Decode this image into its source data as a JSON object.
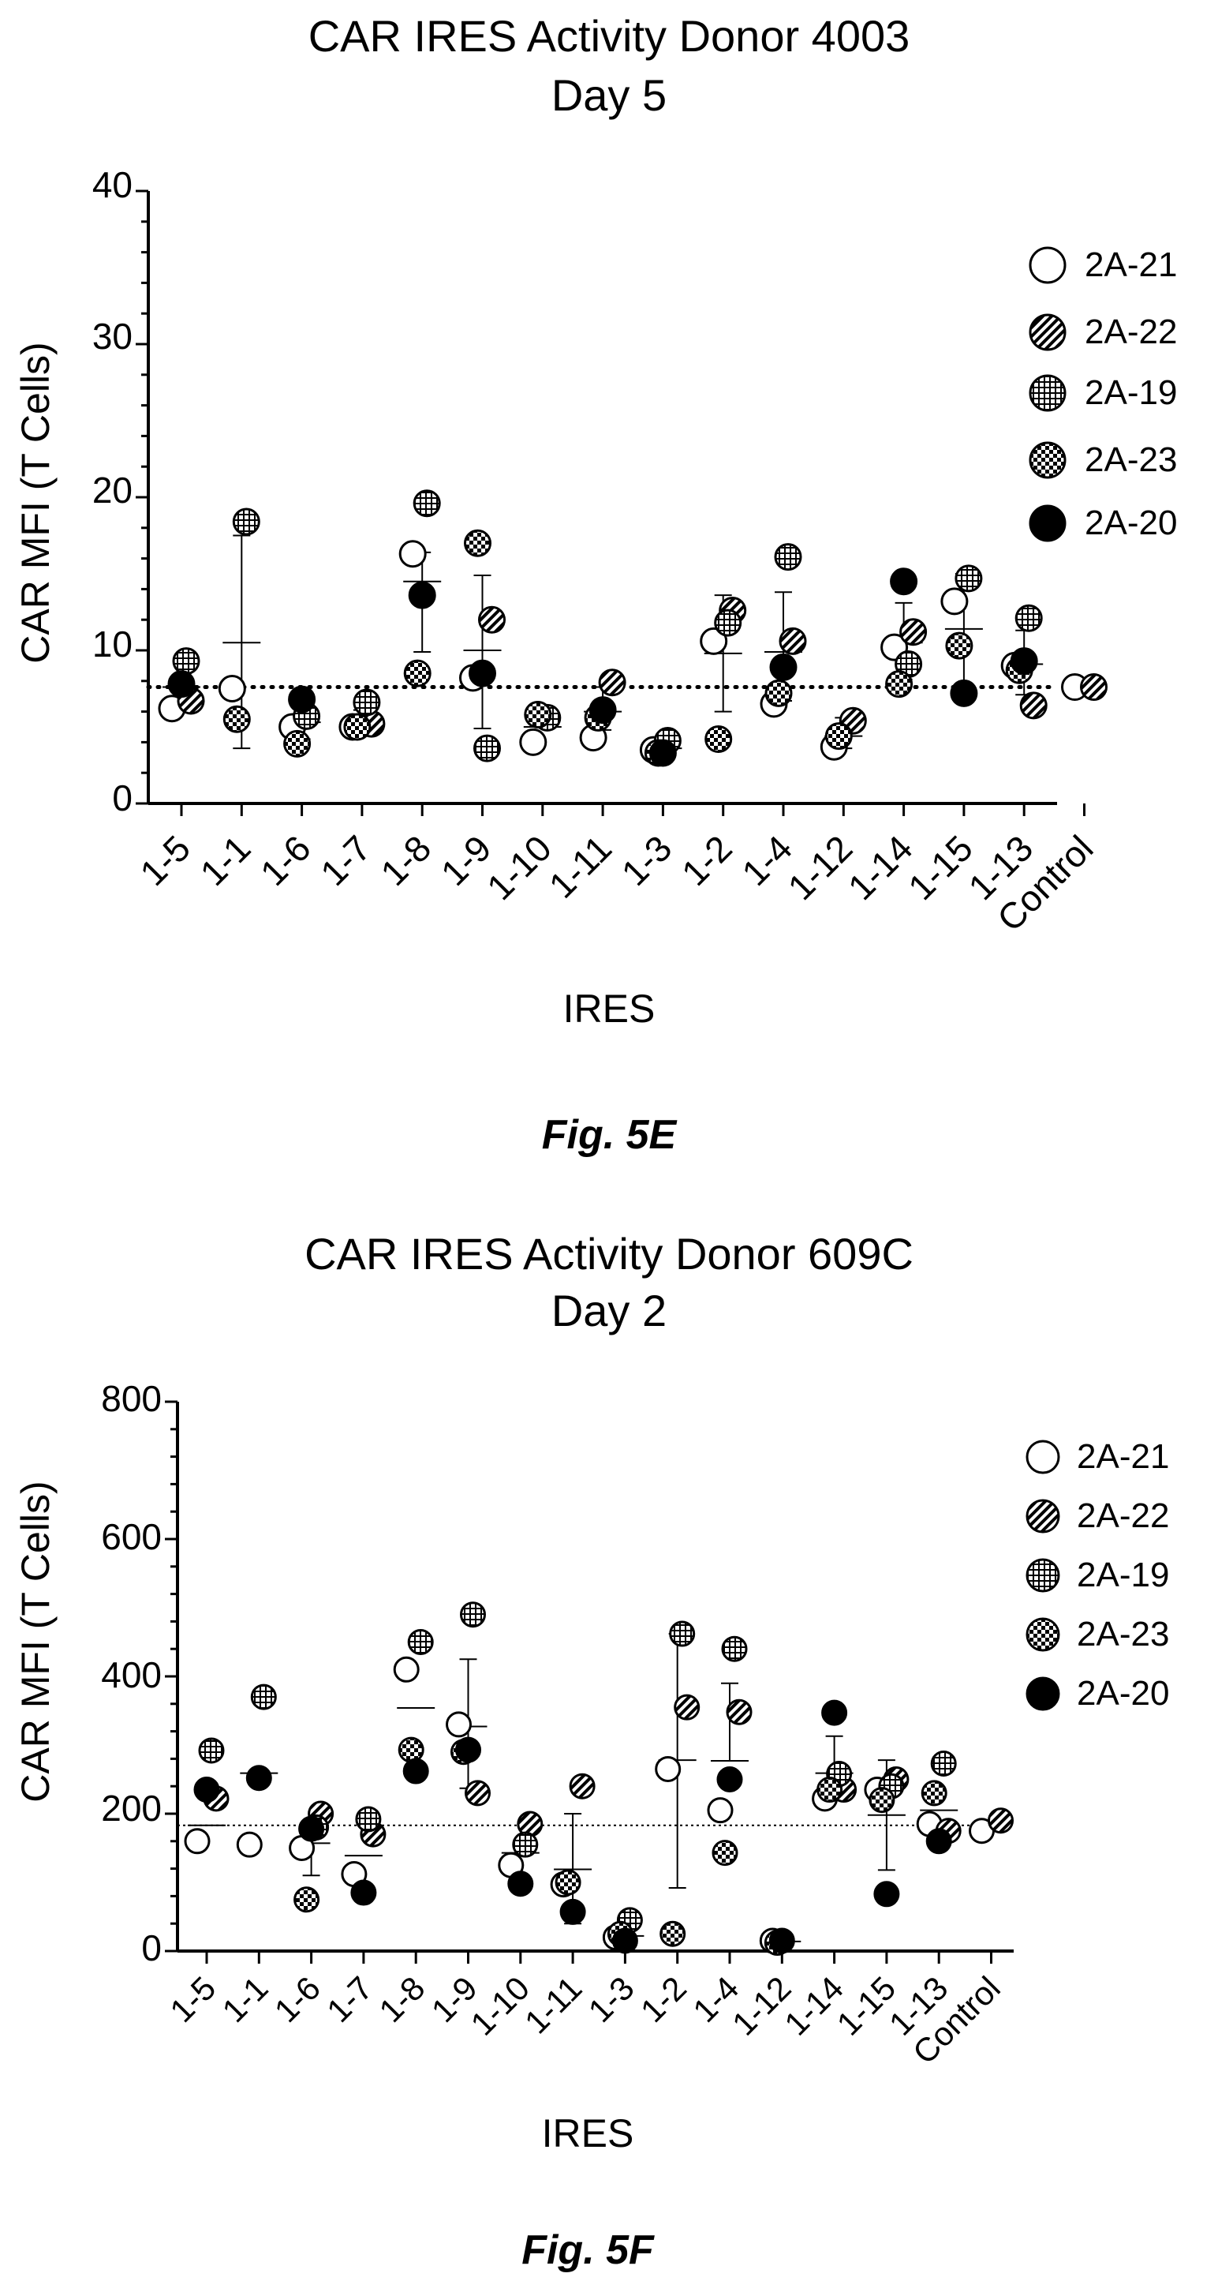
{
  "colors": {
    "ink": "#000000",
    "background": "#ffffff"
  },
  "charts": [
    {
      "title_line1": "CAR IRES Activity Donor 4003",
      "title_line2": "Day 5",
      "ylabel": "CAR MFI (T Cells)",
      "xlabel": "IRES",
      "figure_label": "Fig. 5E",
      "legend": [
        "2A-21",
        "2A-22",
        "2A-19",
        "2A-23",
        "2A-20"
      ],
      "ticks": [
        "0",
        "10",
        "20",
        "30",
        "40"
      ]
    },
    {
      "title_line1": "CAR IRES Activity Donor 609C",
      "title_line2": "Day 2",
      "ylabel": "CAR MFI (T Cells)",
      "xlabel": "IRES",
      "figure_label": "Fig. 5F",
      "legend": [
        "2A-21",
        "2A-22",
        "2A-19",
        "2A-23",
        "2A-20"
      ],
      "ticks": [
        "0",
        "200",
        "400",
        "600",
        "800"
      ]
    }
  ],
  "chart_data": [
    {
      "type": "scatter",
      "title": "CAR IRES Activity Donor 4003 Day 5",
      "xlabel": "IRES",
      "ylabel": "CAR MFI (T Cells)",
      "ylim": [
        0,
        40
      ],
      "yticks": [
        0,
        10,
        20,
        30,
        40
      ],
      "reference_line": 7.6,
      "categories": [
        "1-5",
        "1-1",
        "1-6",
        "1-7",
        "1-8",
        "1-9",
        "1-10",
        "1-11",
        "1-3",
        "1-2",
        "1-4",
        "1-12",
        "1-14",
        "1-15",
        "1-13",
        "Control"
      ],
      "marker_styles": {
        "2A-21": "open",
        "2A-22": "hatched",
        "2A-19": "grid",
        "2A-23": "checker",
        "2A-20": "filled"
      },
      "series": [
        {
          "name": "2A-21",
          "values": [
            6.2,
            7.5,
            5.0,
            5.0,
            16.3,
            8.2,
            4.0,
            4.3,
            3.5,
            10.6,
            6.5,
            3.7,
            10.2,
            13.2,
            9.0,
            7.6
          ]
        },
        {
          "name": "2A-22",
          "values": [
            6.7,
            null,
            null,
            5.2,
            null,
            12.0,
            null,
            7.9,
            null,
            12.6,
            10.6,
            5.4,
            11.2,
            null,
            6.4,
            7.6
          ]
        },
        {
          "name": "2A-19",
          "values": [
            9.3,
            18.4,
            5.7,
            6.6,
            19.6,
            3.6,
            5.6,
            null,
            4.1,
            11.8,
            16.1,
            null,
            9.1,
            14.7,
            12.1,
            null
          ]
        },
        {
          "name": "2A-23",
          "values": [
            null,
            5.5,
            3.9,
            5.0,
            8.5,
            17.0,
            5.8,
            5.6,
            3.3,
            4.2,
            7.2,
            4.4,
            7.8,
            10.3,
            8.7,
            null
          ]
        },
        {
          "name": "2A-20",
          "values": [
            7.8,
            null,
            6.8,
            null,
            13.6,
            8.5,
            null,
            6.1,
            3.3,
            null,
            8.9,
            null,
            14.5,
            7.2,
            9.3,
            null
          ]
        }
      ],
      "mean": [
        7.6,
        10.5,
        5.3,
        5.4,
        14.5,
        10.0,
        5.0,
        6.0,
        3.6,
        9.8,
        9.9,
        4.4,
        10.5,
        11.4,
        9.1,
        7.6
      ],
      "sd_low": [
        null,
        3.6,
        4.2,
        4.9,
        9.9,
        4.9,
        null,
        4.8,
        3.4,
        6.0,
        6.7,
        3.6,
        8.1,
        7.6,
        7.1,
        null
      ],
      "sd_high": [
        null,
        17.5,
        6.8,
        6.1,
        16.4,
        14.9,
        null,
        7.6,
        4.1,
        13.6,
        13.8,
        5.6,
        13.1,
        15.0,
        11.3,
        null
      ]
    },
    {
      "type": "scatter",
      "title": "CAR IRES Activity Donor 609C Day 2",
      "xlabel": "IRES",
      "ylabel": "CAR MFI (T Cells)",
      "ylim": [
        0,
        800
      ],
      "yticks": [
        0,
        200,
        400,
        600,
        800
      ],
      "reference_line": 183,
      "categories": [
        "1-5",
        "1-1",
        "1-6",
        "1-7",
        "1-8",
        "1-9",
        "1-10",
        "1-11",
        "1-3",
        "1-2",
        "1-4",
        "1-12",
        "1-14",
        "1-15",
        "1-13",
        "Control"
      ],
      "marker_styles": {
        "2A-21": "open",
        "2A-22": "hatched",
        "2A-19": "grid",
        "2A-23": "checker",
        "2A-20": "filled"
      },
      "series": [
        {
          "name": "2A-21",
          "values": [
            160,
            155,
            150,
            112,
            410,
            330,
            125,
            97,
            20,
            265,
            205,
            15,
            222,
            235,
            185,
            175
          ]
        },
        {
          "name": "2A-22",
          "values": [
            222,
            null,
            200,
            170,
            null,
            230,
            185,
            240,
            null,
            355,
            348,
            null,
            235,
            250,
            175,
            190
          ]
        },
        {
          "name": "2A-19",
          "values": [
            292,
            370,
            180,
            192,
            450,
            490,
            155,
            null,
            45,
            462,
            440,
            null,
            258,
            240,
            273,
            null
          ]
        },
        {
          "name": "2A-23",
          "values": [
            null,
            null,
            75,
            null,
            293,
            290,
            null,
            100,
            25,
            25,
            143,
            12,
            235,
            220,
            230,
            null
          ]
        },
        {
          "name": "2A-20",
          "values": [
            235,
            252,
            178,
            85,
            262,
            293,
            98,
            57,
            15,
            null,
            250,
            15,
            347,
            83,
            160,
            null
          ]
        }
      ],
      "mean": [
        183,
        259,
        157,
        139,
        354,
        327,
        143,
        119,
        22,
        278,
        277,
        14,
        259,
        198,
        205,
        183
      ],
      "sd_low": [
        null,
        null,
        110,
        null,
        null,
        237,
        null,
        40,
        null,
        92,
        null,
        null,
        null,
        118,
        null,
        null
      ],
      "sd_high": [
        null,
        null,
        null,
        null,
        null,
        425,
        null,
        200,
        null,
        462,
        390,
        null,
        313,
        278,
        null,
        null
      ]
    }
  ]
}
